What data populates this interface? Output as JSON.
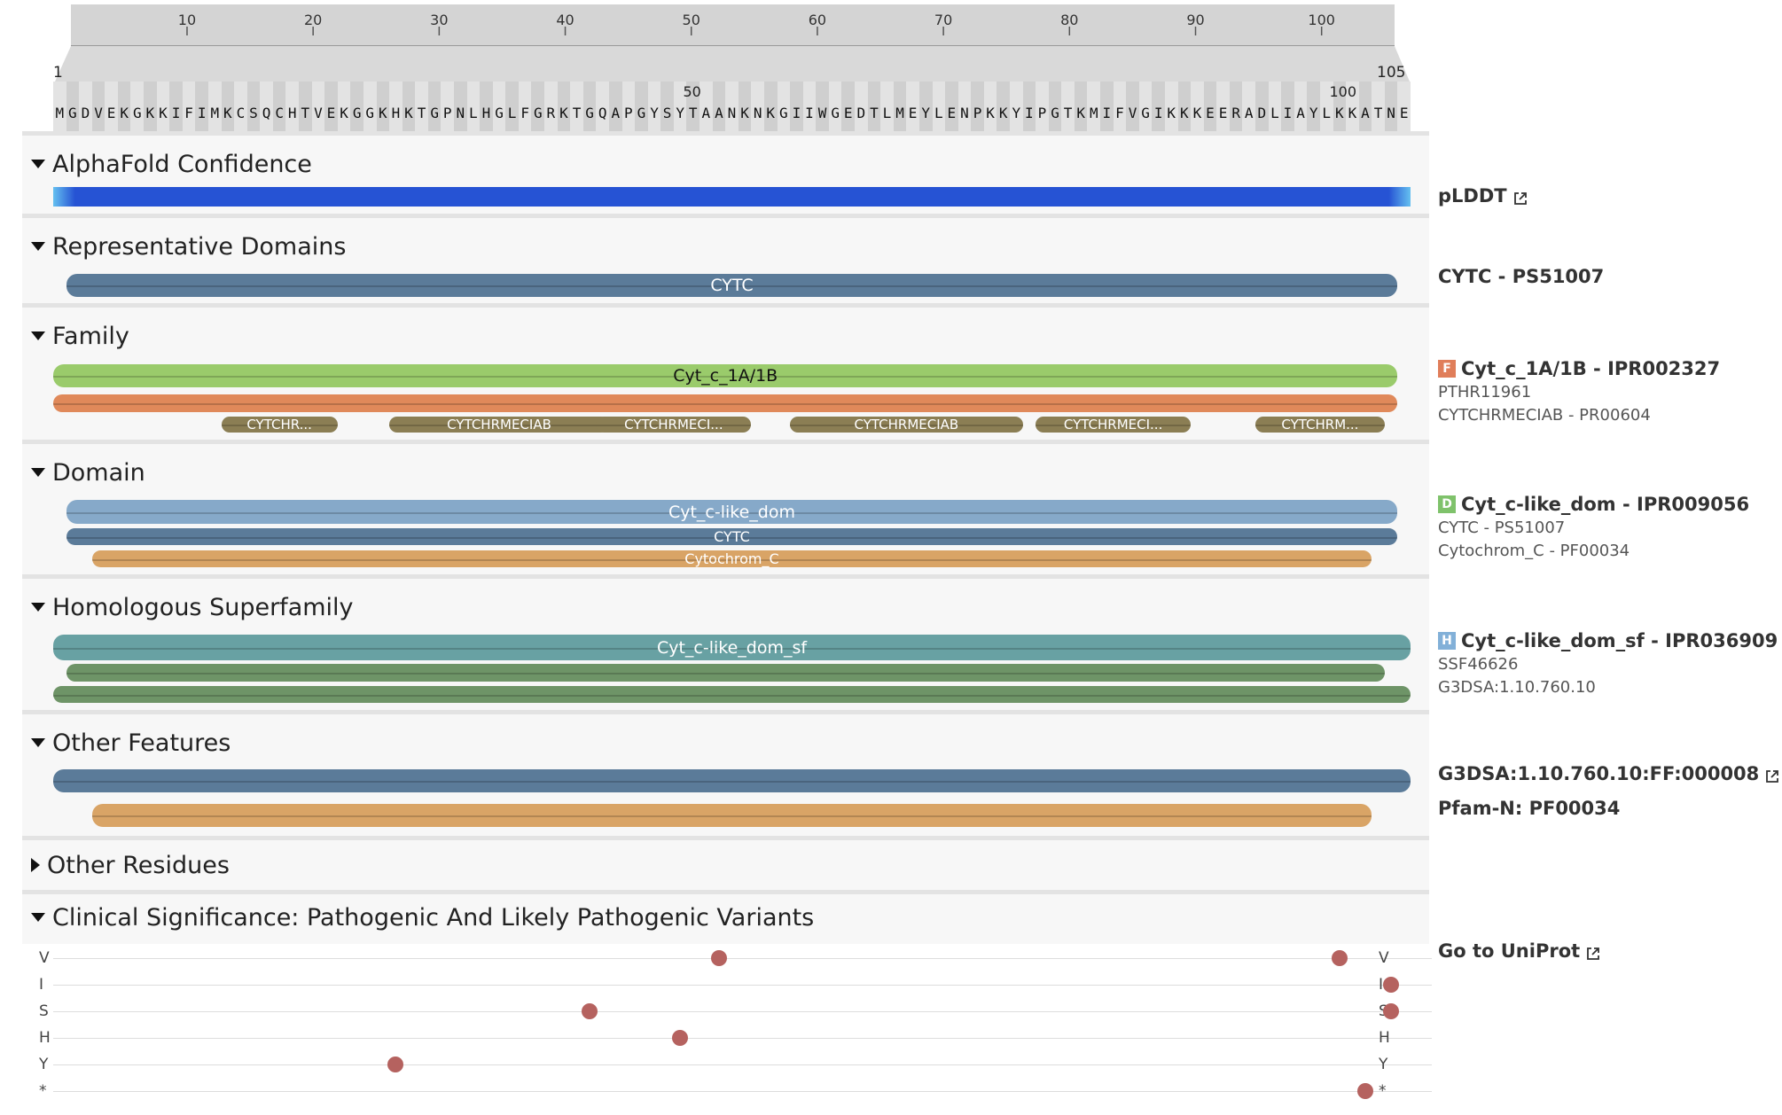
{
  "sequence": {
    "length": 105,
    "residues": "MGDVEKGKKIFIMKCSQCHTVEKGGKHKTGPNLHGLFGRKTGQAPGYSYTAANKNKGIIWGEDTLMEYLENPKKYIPGTKMIFVGIKKKEERADLIAYLKKATNE",
    "start_label": "1",
    "end_label": "105",
    "mid_labels": [
      {
        "pos": 50,
        "label": "50"
      },
      {
        "pos": 100,
        "label": "100"
      }
    ],
    "ruler_ticks": [
      10,
      20,
      30,
      40,
      50,
      60,
      70,
      80,
      90,
      100
    ]
  },
  "sections": [
    {
      "id": "alphafold",
      "title": "AlphaFold Confidence",
      "expanded": true
    },
    {
      "id": "representative",
      "title": "Representative Domains",
      "expanded": true
    },
    {
      "id": "family",
      "title": "Family",
      "expanded": true
    },
    {
      "id": "domain",
      "title": "Domain",
      "expanded": true
    },
    {
      "id": "homologous",
      "title": "Homologous Superfamily",
      "expanded": true
    },
    {
      "id": "other_features",
      "title": "Other Features",
      "expanded": true
    },
    {
      "id": "other_residues",
      "title": "Other Residues",
      "expanded": false
    },
    {
      "id": "clinical",
      "title": "Clinical Significance: Pathogenic And Likely Pathogenic Variants",
      "expanded": true
    }
  ],
  "tracks": {
    "alphafold": {
      "label": "pLDDT",
      "color": "#2653d4",
      "edge_color": "#65c0f0"
    },
    "representative": [
      {
        "label": "CYTC",
        "start": 2,
        "end": 104,
        "color": "#5b7b99"
      }
    ],
    "family": [
      {
        "label": "Cyt_c_1A/1B",
        "start": 1,
        "end": 104,
        "color": "#9acb6b",
        "text_color": "#111111"
      },
      {
        "label": "",
        "start": 1,
        "end": 104,
        "color": "#e0895a"
      },
      {
        "label": "CYTCHR...",
        "start": 14,
        "end": 22,
        "color": "#8b7e54"
      },
      {
        "label": "CYTCHRMECIAB",
        "start": 27,
        "end": 43,
        "color": "#8b7e54"
      },
      {
        "label": "CYTCHRMECI...",
        "start": 43,
        "end": 54,
        "color": "#8b7e54"
      },
      {
        "label": "CYTCHRMECIAB",
        "start": 58,
        "end": 75,
        "color": "#8b7e54"
      },
      {
        "label": "CYTCHRMECI...",
        "start": 77,
        "end": 88,
        "color": "#8b7e54"
      },
      {
        "label": "CYTCHRM...",
        "start": 94,
        "end": 103,
        "color": "#8b7e54"
      }
    ],
    "domain": [
      {
        "label": "Cyt_c-like_dom",
        "start": 2,
        "end": 104,
        "color": "#86a9c9"
      },
      {
        "label": "CYTC",
        "start": 2,
        "end": 104,
        "color": "#5b7b99"
      },
      {
        "label": "Cytochrom_C",
        "start": 4,
        "end": 102,
        "color": "#d9a466"
      }
    ],
    "homologous": [
      {
        "label": "Cyt_c-like_dom_sf",
        "start": 1,
        "end": 105,
        "color": "#68a1a3"
      },
      {
        "label": "",
        "start": 2,
        "end": 103,
        "color": "#6e9467"
      },
      {
        "label": "",
        "start": 1,
        "end": 105,
        "color": "#6e9467"
      }
    ],
    "other_features": [
      {
        "label": "",
        "start": 1,
        "end": 105,
        "color": "#5b7b99"
      },
      {
        "label": "",
        "start": 4,
        "end": 102,
        "color": "#d9a466"
      }
    ]
  },
  "labels": {
    "alphafold": {
      "main": "pLDDT"
    },
    "representative": {
      "main": "CYTC - PS51007"
    },
    "family": {
      "badge": "F",
      "badge_color": "#e07e5a",
      "main": "Cyt_c_1A/1B - IPR002327",
      "subs": [
        "PTHR11961",
        "CYTCHRMECIAB - PR00604"
      ]
    },
    "domain": {
      "badge": "D",
      "badge_color": "#7fc26b",
      "main": "Cyt_c-like_dom - IPR009056",
      "subs": [
        "CYTC - PS51007",
        "Cytochrom_C - PF00034"
      ]
    },
    "homologous": {
      "badge": "H",
      "badge_color": "#82b0d8",
      "main": "Cyt_c-like_dom_sf - IPR036909",
      "subs": [
        "SSF46626",
        "G3DSA:1.10.760.10"
      ]
    },
    "other_features": {
      "main1": "G3DSA:1.10.760.10:FF:000008",
      "main2": "Pfam-N: PF00034"
    },
    "clinical": {
      "main": "Go to UniProt"
    }
  },
  "variants": {
    "rows": [
      "V",
      "I",
      "S",
      "H",
      "Y",
      "*"
    ],
    "points": [
      {
        "row": "V",
        "pos": 52
      },
      {
        "row": "V",
        "pos": 100
      },
      {
        "row": "I",
        "pos": 104
      },
      {
        "row": "S",
        "pos": 42
      },
      {
        "row": "S",
        "pos": 104
      },
      {
        "row": "H",
        "pos": 49
      },
      {
        "row": "Y",
        "pos": 27
      },
      {
        "row": "*",
        "pos": 102
      }
    ],
    "dot_color": "#b5625f"
  }
}
